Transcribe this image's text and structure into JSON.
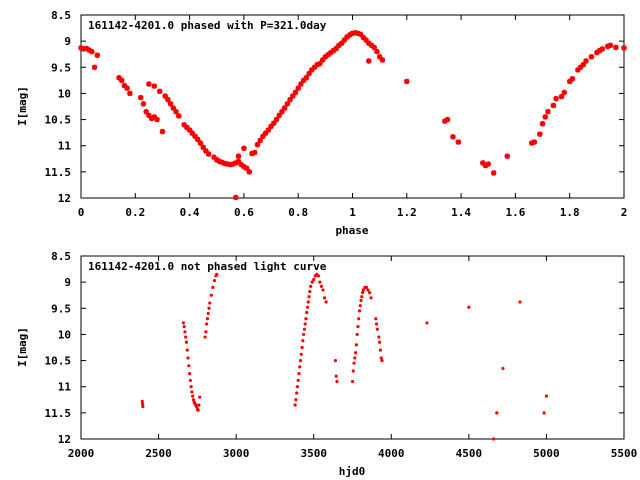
{
  "chart_data": [
    {
      "type": "scatter",
      "title": "161142-4201.0 phased with P=321.0day",
      "xlabel": "phase",
      "ylabel": "I[mag]",
      "xlim": [
        0,
        2
      ],
      "ylim": [
        8.5,
        12
      ],
      "y_inverted": true,
      "x_ticks": [
        "0",
        "0.2",
        "0.4",
        "0.6",
        "0.8",
        "1",
        "1.2",
        "1.4",
        "1.6",
        "1.8",
        "2"
      ],
      "y_ticks": [
        "8.5",
        "9",
        "9.5",
        "10",
        "10.5",
        "11",
        "11.5",
        "12"
      ],
      "marker_color": "#ff0000",
      "series": [
        {
          "points": [
            [
              0.0,
              9.13
            ],
            [
              0.01,
              9.15
            ],
            [
              0.02,
              9.14
            ],
            [
              0.03,
              9.17
            ],
            [
              0.04,
              9.2
            ],
            [
              0.05,
              9.5
            ],
            [
              0.06,
              9.27
            ],
            [
              0.14,
              9.7
            ],
            [
              0.15,
              9.75
            ],
            [
              0.16,
              9.85
            ],
            [
              0.17,
              9.9
            ],
            [
              0.18,
              10.0
            ],
            [
              0.22,
              10.08
            ],
            [
              0.23,
              10.2
            ],
            [
              0.24,
              10.35
            ],
            [
              0.25,
              10.42
            ],
            [
              0.26,
              10.48
            ],
            [
              0.27,
              10.45
            ],
            [
              0.28,
              10.5
            ],
            [
              0.25,
              9.82
            ],
            [
              0.27,
              9.86
            ],
            [
              0.29,
              9.96
            ],
            [
              0.31,
              10.05
            ],
            [
              0.32,
              10.12
            ],
            [
              0.33,
              10.2
            ],
            [
              0.34,
              10.28
            ],
            [
              0.35,
              10.35
            ],
            [
              0.36,
              10.43
            ],
            [
              0.3,
              10.73
            ],
            [
              0.38,
              10.6
            ],
            [
              0.39,
              10.65
            ],
            [
              0.4,
              10.7
            ],
            [
              0.41,
              10.76
            ],
            [
              0.42,
              10.82
            ],
            [
              0.43,
              10.88
            ],
            [
              0.44,
              10.95
            ],
            [
              0.45,
              11.03
            ],
            [
              0.46,
              11.1
            ],
            [
              0.47,
              11.16
            ],
            [
              0.49,
              11.22
            ],
            [
              0.5,
              11.27
            ],
            [
              0.51,
              11.3
            ],
            [
              0.52,
              11.32
            ],
            [
              0.53,
              11.34
            ],
            [
              0.54,
              11.35
            ],
            [
              0.55,
              11.36
            ],
            [
              0.56,
              11.35
            ],
            [
              0.57,
              11.33
            ],
            [
              0.58,
              11.3
            ],
            [
              0.59,
              11.36
            ],
            [
              0.6,
              11.4
            ],
            [
              0.61,
              11.43
            ],
            [
              0.62,
              11.5
            ],
            [
              0.57,
              11.99
            ],
            [
              0.58,
              11.2
            ],
            [
              0.6,
              11.05
            ],
            [
              0.63,
              11.15
            ],
            [
              0.64,
              11.13
            ],
            [
              0.65,
              10.98
            ],
            [
              0.66,
              10.9
            ],
            [
              0.67,
              10.82
            ],
            [
              0.68,
              10.76
            ],
            [
              0.69,
              10.7
            ],
            [
              0.7,
              10.63
            ],
            [
              0.71,
              10.57
            ],
            [
              0.72,
              10.5
            ],
            [
              0.73,
              10.42
            ],
            [
              0.74,
              10.35
            ],
            [
              0.75,
              10.28
            ],
            [
              0.76,
              10.2
            ],
            [
              0.77,
              10.12
            ],
            [
              0.78,
              10.05
            ],
            [
              0.79,
              9.98
            ],
            [
              0.8,
              9.9
            ],
            [
              0.81,
              9.82
            ],
            [
              0.82,
              9.75
            ],
            [
              0.83,
              9.7
            ],
            [
              0.84,
              9.62
            ],
            [
              0.85,
              9.55
            ],
            [
              0.86,
              9.5
            ],
            [
              0.87,
              9.45
            ],
            [
              0.88,
              9.43
            ],
            [
              0.89,
              9.36
            ],
            [
              0.9,
              9.3
            ],
            [
              0.91,
              9.26
            ],
            [
              0.92,
              9.22
            ],
            [
              0.93,
              9.18
            ],
            [
              0.94,
              9.14
            ],
            [
              0.95,
              9.08
            ],
            [
              0.96,
              9.04
            ],
            [
              0.97,
              8.98
            ],
            [
              0.98,
              8.92
            ],
            [
              0.99,
              8.88
            ],
            [
              1.0,
              8.85
            ],
            [
              1.01,
              8.84
            ],
            [
              1.02,
              8.85
            ],
            [
              1.03,
              8.87
            ],
            [
              1.04,
              8.93
            ],
            [
              1.05,
              8.98
            ],
            [
              1.06,
              9.04
            ],
            [
              1.07,
              9.08
            ],
            [
              1.08,
              9.12
            ],
            [
              1.09,
              9.2
            ],
            [
              1.1,
              9.3
            ],
            [
              1.11,
              9.36
            ],
            [
              1.06,
              9.38
            ],
            [
              1.2,
              9.77
            ],
            [
              1.34,
              10.53
            ],
            [
              1.35,
              10.5
            ],
            [
              1.37,
              10.83
            ],
            [
              1.39,
              10.93
            ],
            [
              1.48,
              11.33
            ],
            [
              1.49,
              11.38
            ],
            [
              1.5,
              11.35
            ],
            [
              1.52,
              11.52
            ],
            [
              1.57,
              11.2
            ],
            [
              1.66,
              10.95
            ],
            [
              1.67,
              10.93
            ],
            [
              1.69,
              10.78
            ],
            [
              1.7,
              10.58
            ],
            [
              1.71,
              10.45
            ],
            [
              1.72,
              10.35
            ],
            [
              1.74,
              10.23
            ],
            [
              1.75,
              10.1
            ],
            [
              1.77,
              10.06
            ],
            [
              1.78,
              9.98
            ],
            [
              1.8,
              9.77
            ],
            [
              1.81,
              9.72
            ],
            [
              1.83,
              9.55
            ],
            [
              1.84,
              9.5
            ],
            [
              1.85,
              9.45
            ],
            [
              1.86,
              9.38
            ],
            [
              1.88,
              9.3
            ],
            [
              1.9,
              9.22
            ],
            [
              1.91,
              9.18
            ],
            [
              1.92,
              9.15
            ],
            [
              1.94,
              9.1
            ],
            [
              1.95,
              9.08
            ],
            [
              1.97,
              9.12
            ],
            [
              2.0,
              9.13
            ]
          ]
        }
      ]
    },
    {
      "type": "scatter",
      "title": "161142-4201.0 not phased light curve",
      "xlabel": "hjd0",
      "ylabel": "I[mag]",
      "xlim": [
        2000,
        5500
      ],
      "ylim": [
        8.5,
        12
      ],
      "y_inverted": true,
      "x_ticks": [
        "2000",
        "2500",
        "3000",
        "3500",
        "4000",
        "4500",
        "5000",
        "5500"
      ],
      "y_ticks": [
        "8.5",
        "9",
        "9.5",
        "10",
        "10.5",
        "11",
        "11.5",
        "12"
      ],
      "marker_color": "#ff0000",
      "series": [
        {
          "points": [
            [
              2395,
              11.28
            ],
            [
              2397,
              11.33
            ],
            [
              2399,
              11.38
            ],
            [
              2660,
              9.78
            ],
            [
              2665,
              9.85
            ],
            [
              2670,
              9.95
            ],
            [
              2675,
              10.05
            ],
            [
              2680,
              10.15
            ],
            [
              2685,
              10.3
            ],
            [
              2690,
              10.45
            ],
            [
              2695,
              10.6
            ],
            [
              2700,
              10.75
            ],
            [
              2705,
              10.88
            ],
            [
              2710,
              11.0
            ],
            [
              2715,
              11.1
            ],
            [
              2720,
              11.18
            ],
            [
              2725,
              11.25
            ],
            [
              2730,
              11.3
            ],
            [
              2735,
              11.33
            ],
            [
              2740,
              11.35
            ],
            [
              2745,
              11.38
            ],
            [
              2750,
              11.43
            ],
            [
              2755,
              11.45
            ],
            [
              2760,
              11.35
            ],
            [
              2765,
              11.2
            ],
            [
              2800,
              10.05
            ],
            [
              2805,
              9.95
            ],
            [
              2810,
              9.8
            ],
            [
              2815,
              9.7
            ],
            [
              2820,
              9.6
            ],
            [
              2825,
              9.5
            ],
            [
              2830,
              9.4
            ],
            [
              2840,
              9.25
            ],
            [
              2850,
              9.1
            ],
            [
              2860,
              8.97
            ],
            [
              2870,
              8.88
            ],
            [
              2875,
              8.85
            ],
            [
              3380,
              11.35
            ],
            [
              3385,
              11.25
            ],
            [
              3390,
              11.12
            ],
            [
              3395,
              11.0
            ],
            [
              3400,
              10.88
            ],
            [
              3405,
              10.75
            ],
            [
              3410,
              10.62
            ],
            [
              3415,
              10.5
            ],
            [
              3420,
              10.38
            ],
            [
              3425,
              10.25
            ],
            [
              3430,
              10.12
            ],
            [
              3435,
              10.0
            ],
            [
              3440,
              9.9
            ],
            [
              3445,
              9.8
            ],
            [
              3450,
              9.7
            ],
            [
              3455,
              9.58
            ],
            [
              3460,
              9.48
            ],
            [
              3465,
              9.38
            ],
            [
              3470,
              9.28
            ],
            [
              3475,
              9.18
            ],
            [
              3480,
              9.08
            ],
            [
              3490,
              9.0
            ],
            [
              3500,
              8.95
            ],
            [
              3510,
              8.88
            ],
            [
              3520,
              8.85
            ],
            [
              3530,
              8.88
            ],
            [
              3540,
              9.0
            ],
            [
              3550,
              9.08
            ],
            [
              3560,
              9.15
            ],
            [
              3570,
              9.3
            ],
            [
              3580,
              9.38
            ],
            [
              3640,
              10.5
            ],
            [
              3645,
              10.8
            ],
            [
              3650,
              10.9
            ],
            [
              3750,
              10.9
            ],
            [
              3755,
              10.7
            ],
            [
              3760,
              10.55
            ],
            [
              3765,
              10.45
            ],
            [
              3770,
              10.35
            ],
            [
              3775,
              10.2
            ],
            [
              3780,
              10.0
            ],
            [
              3785,
              9.85
            ],
            [
              3790,
              9.7
            ],
            [
              3795,
              9.55
            ],
            [
              3800,
              9.45
            ],
            [
              3805,
              9.35
            ],
            [
              3810,
              9.28
            ],
            [
              3815,
              9.2
            ],
            [
              3820,
              9.15
            ],
            [
              3830,
              9.1
            ],
            [
              3840,
              9.1
            ],
            [
              3850,
              9.15
            ],
            [
              3860,
              9.2
            ],
            [
              3870,
              9.3
            ],
            [
              3900,
              9.7
            ],
            [
              3905,
              9.8
            ],
            [
              3910,
              9.9
            ],
            [
              3920,
              10.05
            ],
            [
              3925,
              10.15
            ],
            [
              3930,
              10.3
            ],
            [
              3935,
              10.45
            ],
            [
              3940,
              10.5
            ],
            [
              4230,
              9.78
            ],
            [
              4500,
              9.48
            ],
            [
              4660,
              12.0
            ],
            [
              4680,
              11.5
            ],
            [
              4720,
              10.65
            ],
            [
              4830,
              9.38
            ],
            [
              4985,
              11.5
            ],
            [
              5000,
              11.18
            ]
          ]
        }
      ]
    }
  ]
}
